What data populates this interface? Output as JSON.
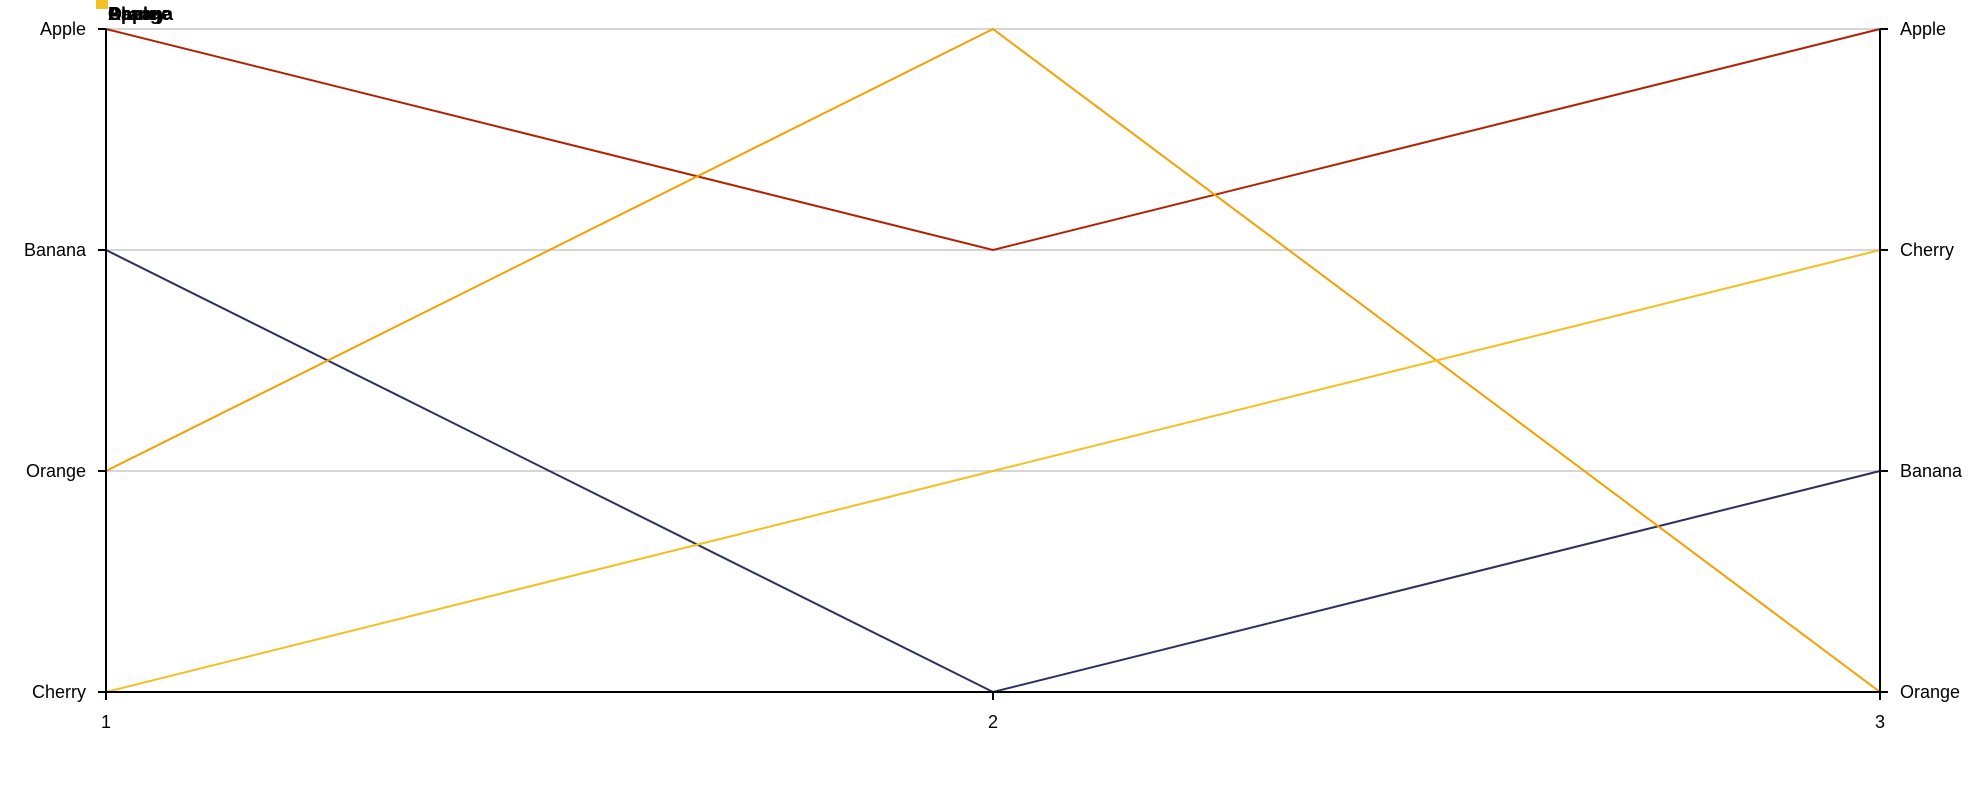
{
  "chart_data": {
    "type": "line",
    "title": "",
    "xlabel": "",
    "ylabel": "",
    "x": [
      1,
      2,
      3
    ],
    "x_tick_labels": [
      "1",
      "2",
      "3"
    ],
    "left_axis_categories": [
      "Apple",
      "Banana",
      "Orange",
      "Cherry"
    ],
    "right_axis_categories": [
      "Apple",
      "Cherry",
      "Banana",
      "Orange"
    ],
    "grid": true,
    "legend_position": "top-left",
    "series": [
      {
        "name": "Apple",
        "color": "#b22200",
        "values": [
          0,
          1,
          0
        ]
      },
      {
        "name": "Banana",
        "color": "#2b3060",
        "values": [
          1,
          3,
          2
        ]
      },
      {
        "name": "Orange",
        "color": "#f5a000",
        "values": [
          2,
          0,
          3
        ]
      },
      {
        "name": "Cherry",
        "color": "#f2c020",
        "values": [
          3,
          2,
          1
        ]
      }
    ]
  }
}
